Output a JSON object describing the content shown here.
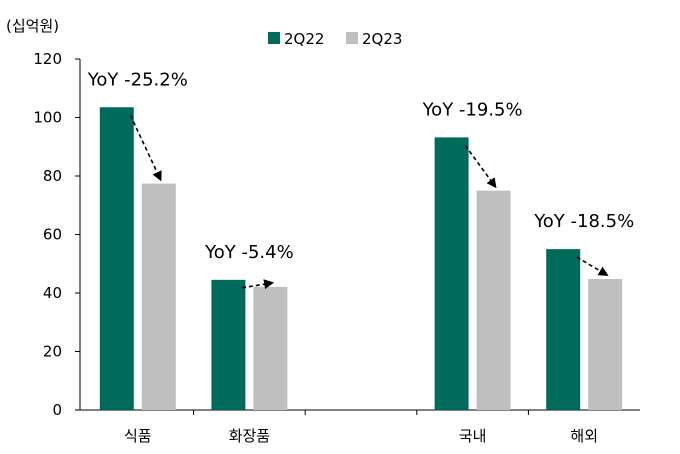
{
  "chart_data": {
    "type": "bar",
    "unit_label": "(십억원)",
    "categories": [
      "식품",
      "화장품",
      "",
      "국내",
      "해외"
    ],
    "series": [
      {
        "name": "2Q22",
        "color": "#006b5b",
        "values": [
          103.5,
          44.5,
          null,
          93.2,
          55.0
        ]
      },
      {
        "name": "2Q23",
        "color": "#bfbfbf",
        "values": [
          77.4,
          42.1,
          null,
          75.0,
          44.8
        ]
      }
    ],
    "yticks": [
      "0",
      "20",
      "40",
      "60",
      "80",
      "100",
      "120"
    ],
    "ylim": [
      0,
      120
    ],
    "annotations": [
      {
        "category_index": 0,
        "text": "YoY -25.2%"
      },
      {
        "category_index": 1,
        "text": "YoY -5.4%"
      },
      {
        "category_index": 3,
        "text": "YoY -19.5%"
      },
      {
        "category_index": 4,
        "text": "YoY -18.5%"
      }
    ],
    "grid": false,
    "legend_position": "top-center"
  }
}
